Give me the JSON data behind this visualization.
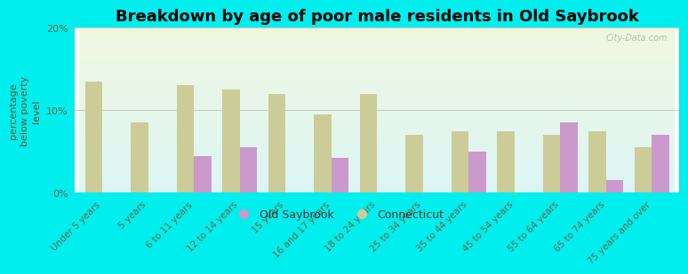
{
  "title": "Breakdown by age of poor male residents in Old Saybrook",
  "ylabel": "percentage\nbelow poverty\nlevel",
  "categories": [
    "Under 5 years",
    "5 years",
    "6 to 11 years",
    "12 to 14 years",
    "15 years",
    "16 and 17 years",
    "18 to 24 years",
    "25 to 34 years",
    "35 to 44 years",
    "45 to 54 years",
    "55 to 64 years",
    "65 to 74 years",
    "75 years and over"
  ],
  "old_saybrook": [
    0,
    0,
    4.5,
    5.5,
    0,
    4.2,
    0,
    0,
    5.0,
    0,
    8.5,
    1.5,
    7.0
  ],
  "connecticut": [
    13.5,
    8.5,
    13.0,
    12.5,
    12.0,
    9.5,
    12.0,
    7.0,
    7.5,
    7.5,
    7.0,
    7.5,
    5.5
  ],
  "old_saybrook_color": "#cc99cc",
  "connecticut_color": "#cccc99",
  "background_color": "#00eeee",
  "ylim": [
    0,
    20
  ],
  "yticks": [
    0,
    10,
    20
  ],
  "yticklabels": [
    "0%",
    "10%",
    "20%"
  ],
  "bar_width": 0.38,
  "title_fontsize": 13,
  "ylabel_fontsize": 8,
  "tick_label_fontsize": 7.5,
  "ytick_fontsize": 8,
  "legend_fontsize": 9,
  "watermark": "City-Data.com"
}
